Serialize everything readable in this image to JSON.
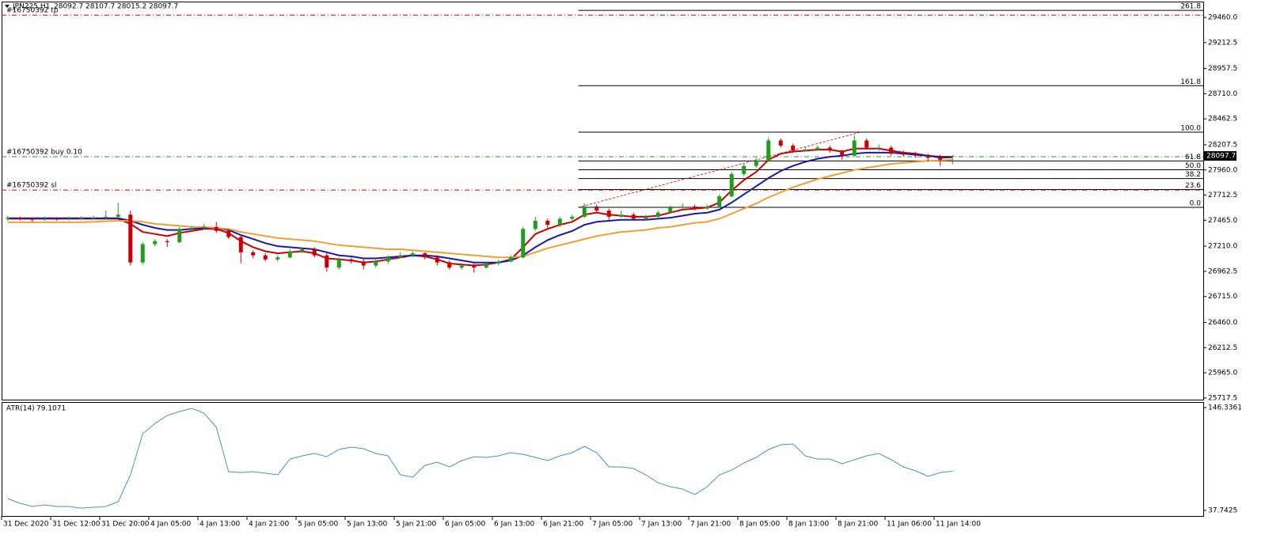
{
  "chart_data": [
    {
      "type": "candlestick",
      "title": "JPN225,H1",
      "colors": {
        "up": "#1f9d1f",
        "down": "#cc0000",
        "fib": "#000000"
      },
      "ylim": [
        25701,
        29616
      ],
      "yticks": [
        {
          "value": 29460,
          "label": "29460.0"
        },
        29212.5,
        28957.5,
        {
          "value": 28710,
          "label": "28710.0"
        },
        28462.5,
        28207.5,
        {
          "value": 27960,
          "label": "27960.0"
        },
        27712.5,
        {
          "value": 27465,
          "label": "27465.0"
        },
        {
          "value": 27210,
          "label": "27210.0"
        },
        26962.5,
        {
          "value": 26715,
          "label": "26715.0"
        },
        {
          "value": 26460,
          "label": "26460.0"
        },
        26212.5,
        {
          "value": 25965,
          "label": "25965.0"
        },
        25717.5
      ],
      "xticks": [
        {
          "value": 0,
          "label": "31 Dec 2020"
        },
        {
          "value": 4,
          "label": "31 Dec 12:00"
        },
        {
          "value": 8,
          "label": "31 Dec 20:00"
        },
        {
          "value": 12,
          "label": "4 Jan 05:00"
        },
        {
          "value": 16,
          "label": "4 Jan 13:00"
        },
        {
          "value": 20,
          "label": "4 Jan 21:00"
        },
        {
          "value": 24,
          "label": "5 Jan 05:00"
        },
        {
          "value": 28,
          "label": "5 Jan 13:00"
        },
        {
          "value": 32,
          "label": "5 Jan 21:00"
        },
        {
          "value": 36,
          "label": "6 Jan 05:00"
        },
        {
          "value": 40,
          "label": "6 Jan 13:00"
        },
        {
          "value": 44,
          "label": "6 Jan 21:00"
        },
        {
          "value": 48,
          "label": "7 Jan 05:00"
        },
        {
          "value": 52,
          "label": "7 Jan 13:00"
        },
        {
          "value": 56,
          "label": "7 Jan 21:00"
        },
        {
          "value": 60,
          "label": "8 Jan 05:00"
        },
        {
          "value": 64,
          "label": "8 Jan 13:00"
        },
        {
          "value": 68,
          "label": "8 Jan 21:00"
        },
        {
          "value": 72,
          "label": "11 Jan 06:00"
        },
        {
          "value": 76,
          "label": "11 Jan 14:00"
        }
      ],
      "ohlc": [
        [
          27480,
          27510,
          27460,
          27490
        ],
        [
          27490,
          27500,
          27465,
          27480
        ],
        [
          27480,
          27490,
          27450,
          27470
        ],
        [
          27470,
          27500,
          27460,
          27480
        ],
        [
          27480,
          27495,
          27460,
          27475
        ],
        [
          27475,
          27500,
          27465,
          27480
        ],
        [
          27480,
          27505,
          27470,
          27485
        ],
        [
          27485,
          27510,
          27475,
          27490
        ],
        [
          27490,
          27560,
          27480,
          27500
        ],
        [
          27500,
          27640,
          27490,
          27520
        ],
        [
          27520,
          27560,
          27020,
          27050
        ],
        [
          27050,
          27250,
          27030,
          27230
        ],
        [
          27230,
          27280,
          27210,
          27260
        ],
        [
          27260,
          27280,
          27200,
          27250
        ],
        [
          27250,
          27400,
          27240,
          27380
        ],
        [
          27380,
          27410,
          27360,
          27390
        ],
        [
          27390,
          27430,
          27370,
          27400
        ],
        [
          27400,
          27450,
          27340,
          27360
        ],
        [
          27360,
          27380,
          27280,
          27300
        ],
        [
          27300,
          27320,
          27040,
          27150
        ],
        [
          27150,
          27170,
          27090,
          27120
        ],
        [
          27120,
          27140,
          27060,
          27080
        ],
        [
          27080,
          27120,
          27060,
          27100
        ],
        [
          27100,
          27180,
          27090,
          27160
        ],
        [
          27160,
          27200,
          27140,
          27180
        ],
        [
          27180,
          27200,
          27100,
          27120
        ],
        [
          27120,
          27140,
          26960,
          27000
        ],
        [
          27000,
          27100,
          26980,
          27080
        ],
        [
          27080,
          27100,
          27040,
          27060
        ],
        [
          27060,
          27080,
          26980,
          27020
        ],
        [
          27020,
          27080,
          27000,
          27060
        ],
        [
          27060,
          27120,
          27040,
          27100
        ],
        [
          27100,
          27150,
          27090,
          27120
        ],
        [
          27120,
          27160,
          27100,
          27140
        ],
        [
          27140,
          27150,
          27080,
          27100
        ],
        [
          27100,
          27120,
          27020,
          27050
        ],
        [
          27050,
          27070,
          26980,
          27000
        ],
        [
          27000,
          27040,
          26980,
          27020
        ],
        [
          27020,
          27040,
          26950,
          27000
        ],
        [
          27000,
          27060,
          26990,
          27040
        ],
        [
          27040,
          27080,
          27020,
          27060
        ],
        [
          27060,
          27120,
          27050,
          27100
        ],
        [
          27100,
          27400,
          27090,
          27380
        ],
        [
          27380,
          27500,
          27360,
          27460
        ],
        [
          27460,
          27480,
          27380,
          27420
        ],
        [
          27420,
          27500,
          27400,
          27480
        ],
        [
          27480,
          27520,
          27460,
          27500
        ],
        [
          27500,
          27630,
          27490,
          27600
        ],
        [
          27600,
          27620,
          27540,
          27560
        ],
        [
          27560,
          27580,
          27470,
          27500
        ],
        [
          27500,
          27560,
          27490,
          27520
        ],
        [
          27520,
          27540,
          27460,
          27480
        ],
        [
          27480,
          27520,
          27460,
          27500
        ],
        [
          27500,
          27560,
          27490,
          27540
        ],
        [
          27540,
          27610,
          27530,
          27590
        ],
        [
          27590,
          27630,
          27570,
          27600
        ],
        [
          27600,
          27620,
          27560,
          27580
        ],
        [
          27580,
          27620,
          27570,
          27600
        ],
        [
          27600,
          27720,
          27590,
          27700
        ],
        [
          27700,
          27940,
          27690,
          27920
        ],
        [
          27920,
          28020,
          27900,
          28000
        ],
        [
          28000,
          28080,
          27980,
          28050
        ],
        [
          28050,
          28280,
          28040,
          28250
        ],
        [
          28250,
          28270,
          28180,
          28200
        ],
        [
          28200,
          28220,
          28130,
          28150
        ],
        [
          28150,
          28190,
          28140,
          28160
        ],
        [
          28160,
          28200,
          28150,
          28180
        ],
        [
          28180,
          28200,
          28130,
          28150
        ],
        [
          28150,
          28160,
          28060,
          28100
        ],
        [
          28100,
          28300,
          28090,
          28250
        ],
        [
          28250,
          28270,
          28160,
          28180
        ],
        [
          28180,
          28210,
          28150,
          28180
        ],
        [
          28180,
          28200,
          28100,
          28120
        ],
        [
          28120,
          28150,
          28090,
          28110
        ],
        [
          28110,
          28140,
          28080,
          28100
        ],
        [
          28100,
          28120,
          28040,
          28080
        ],
        [
          28080,
          28110,
          28000,
          28060
        ],
        [
          28092.7,
          28107.7,
          28015.2,
          28097.7
        ]
      ],
      "series": [
        {
          "color": "#cc0000",
          "values": [
            27480,
            27480,
            27480,
            27480,
            27480,
            27480,
            27480,
            27480,
            27480,
            27480,
            27430,
            27350,
            27330,
            27310,
            27340,
            27360,
            27380,
            27380,
            27340,
            27260,
            27200,
            27160,
            27140,
            27150,
            27160,
            27140,
            27090,
            27080,
            27070,
            27050,
            27060,
            27080,
            27100,
            27120,
            27110,
            27080,
            27040,
            27030,
            27020,
            27030,
            27050,
            27080,
            27200,
            27330,
            27380,
            27420,
            27450,
            27520,
            27540,
            27520,
            27510,
            27500,
            27500,
            27510,
            27540,
            27570,
            27580,
            27590,
            27640,
            27760,
            27860,
            27940,
            28060,
            28120,
            28140,
            28150,
            28160,
            28160,
            28140,
            28170,
            28170,
            28170,
            28150,
            28130,
            28120,
            28100,
            28080,
            28085
          ]
        },
        {
          "color": "#1a1aa8",
          "values": [
            27485,
            27485,
            27485,
            27485,
            27485,
            27485,
            27485,
            27485,
            27485,
            27485,
            27460,
            27420,
            27390,
            27370,
            27370,
            27380,
            27390,
            27390,
            27370,
            27320,
            27280,
            27240,
            27210,
            27200,
            27190,
            27180,
            27150,
            27120,
            27110,
            27090,
            27090,
            27100,
            27110,
            27120,
            27120,
            27110,
            27090,
            27070,
            27050,
            27050,
            27050,
            27070,
            27120,
            27200,
            27270,
            27320,
            27360,
            27420,
            27450,
            27460,
            27470,
            27470,
            27470,
            27480,
            27490,
            27510,
            27530,
            27540,
            27570,
            27640,
            27720,
            27800,
            27880,
            27950,
            28000,
            28040,
            28070,
            28090,
            28100,
            28120,
            28130,
            28130,
            28130,
            28120,
            28110,
            28100,
            28090,
            28090
          ]
        },
        {
          "color": "#f0a030",
          "values": [
            27445,
            27445,
            27445,
            27445,
            27445,
            27445,
            27445,
            27450,
            27455,
            27460,
            27460,
            27450,
            27430,
            27420,
            27410,
            27400,
            27400,
            27390,
            27380,
            27350,
            27330,
            27310,
            27290,
            27280,
            27270,
            27260,
            27240,
            27220,
            27210,
            27200,
            27190,
            27180,
            27180,
            27170,
            27160,
            27150,
            27140,
            27130,
            27120,
            27110,
            27100,
            27100,
            27110,
            27150,
            27190,
            27220,
            27250,
            27280,
            27310,
            27330,
            27350,
            27360,
            27370,
            27390,
            27400,
            27420,
            27440,
            27450,
            27480,
            27530,
            27580,
            27630,
            27690,
            27740,
            27790,
            27830,
            27870,
            27900,
            27930,
            27960,
            27980,
            28000,
            28020,
            28030,
            28040,
            28050,
            28055,
            28060
          ]
        }
      ],
      "fib_levels": [
        {
          "label": "261.8",
          "price": 29529
        },
        {
          "label": "161.8",
          "price": 28789
        },
        {
          "label": "100.0",
          "price": 28332
        },
        {
          "label": "61.8",
          "price": 28049
        },
        {
          "label": "50.0",
          "price": 27962
        },
        {
          "label": "38.2",
          "price": 27875
        },
        {
          "label": "23.6",
          "price": 27767
        },
        {
          "label": "0.0",
          "price": 27592
        }
      ],
      "orders": [
        {
          "label": "#16750392 tp",
          "price": 29483,
          "color": "#cc0000"
        },
        {
          "label": "#16750392 buy 0.10",
          "price": 28090,
          "color": "#1f9d1f"
        },
        {
          "label": "#16750392 sl",
          "price": 27763,
          "color": "#cc0000"
        }
      ]
    },
    {
      "type": "line",
      "title": "ATR(14)",
      "color": "#4a90c8",
      "ylim": [
        31.9,
        152.2
      ],
      "yticks": [
        146.3361,
        37.7425
      ],
      "values": [
        50.3,
        45.3,
        41.9,
        43.6,
        41.9,
        41.9,
        40.2,
        41.1,
        41.9,
        46.9,
        75.3,
        118.8,
        129.6,
        138.0,
        142.2,
        145.5,
        140.5,
        125.5,
        78.7,
        77.8,
        78.7,
        77.0,
        75.3,
        92.0,
        95.4,
        97.9,
        94.5,
        102.1,
        104.6,
        102.9,
        97.9,
        95.4,
        75.3,
        72.8,
        85.3,
        88.7,
        83.7,
        90.4,
        94.5,
        93.7,
        95.4,
        98.7,
        97.0,
        93.7,
        90.4,
        95.4,
        98.7,
        105.4,
        98.7,
        83.7,
        83.7,
        82.0,
        75.3,
        66.9,
        62.8,
        60.3,
        54.5,
        62.8,
        75.3,
        80.3,
        87.9,
        93.7,
        102.1,
        107.1,
        107.9,
        95.4,
        92.0,
        92.0,
        87.0,
        91.2,
        95.4,
        97.9,
        91.2,
        83.7,
        79.5,
        73.7,
        77.8,
        79.1071
      ]
    }
  ]
}
